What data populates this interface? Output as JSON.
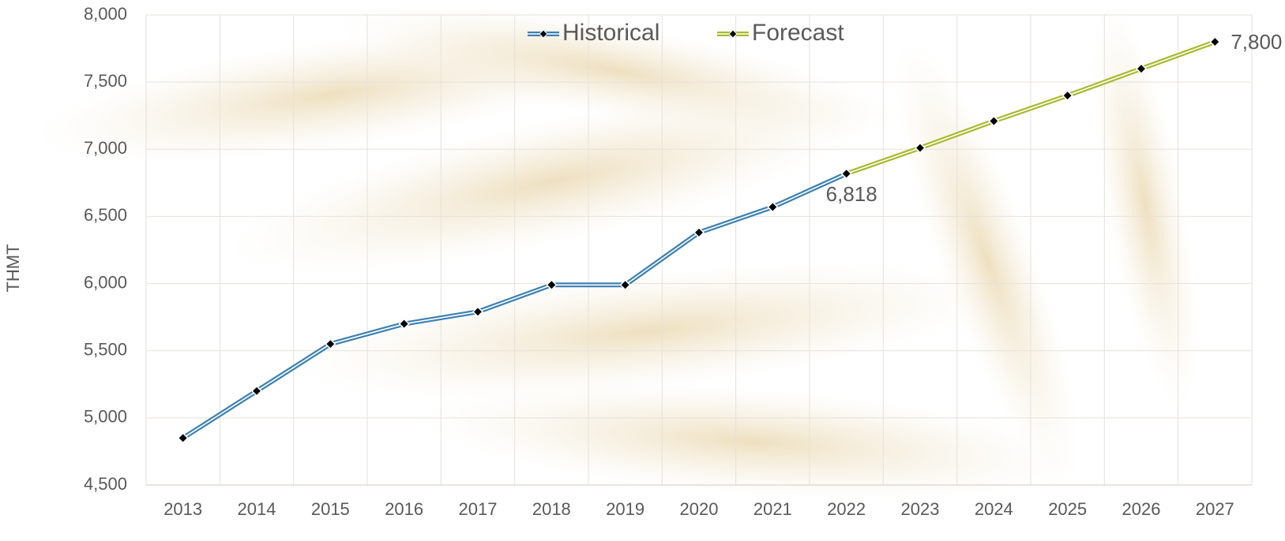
{
  "chart_data": {
    "type": "line",
    "y_label": "THMT",
    "categories": [
      "2013",
      "2014",
      "2015",
      "2016",
      "2017",
      "2018",
      "2019",
      "2020",
      "2021",
      "2022",
      "2023",
      "2024",
      "2025",
      "2026",
      "2027"
    ],
    "series": [
      {
        "name": "Historical",
        "color": "#3b80b2",
        "values": [
          4850,
          5200,
          5550,
          5700,
          5790,
          5990,
          5990,
          6380,
          6570,
          6818,
          null,
          null,
          null,
          null,
          null
        ],
        "value_labels": [
          null,
          null,
          null,
          null,
          null,
          null,
          null,
          null,
          null,
          "6,818",
          null,
          null,
          null,
          null,
          null
        ]
      },
      {
        "name": "Forecast",
        "color": "#a9b92e",
        "values": [
          null,
          null,
          null,
          null,
          null,
          null,
          null,
          null,
          null,
          6818,
          7010,
          7210,
          7400,
          7600,
          7800
        ],
        "value_labels": [
          null,
          null,
          null,
          null,
          null,
          null,
          null,
          null,
          null,
          null,
          null,
          null,
          null,
          null,
          "7,800"
        ]
      }
    ],
    "ylim": [
      4500,
      8000
    ],
    "yticks": [
      {
        "value": 4500,
        "label": "4,500"
      },
      {
        "value": 5000,
        "label": "5,000"
      },
      {
        "value": 5500,
        "label": "5,500"
      },
      {
        "value": 6000,
        "label": "6,000"
      },
      {
        "value": 6500,
        "label": "6,500"
      },
      {
        "value": 7000,
        "label": "7,000"
      },
      {
        "value": 7500,
        "label": "7,500"
      },
      {
        "value": 8000,
        "label": "8,000"
      }
    ],
    "grid": true,
    "legend": "top"
  }
}
